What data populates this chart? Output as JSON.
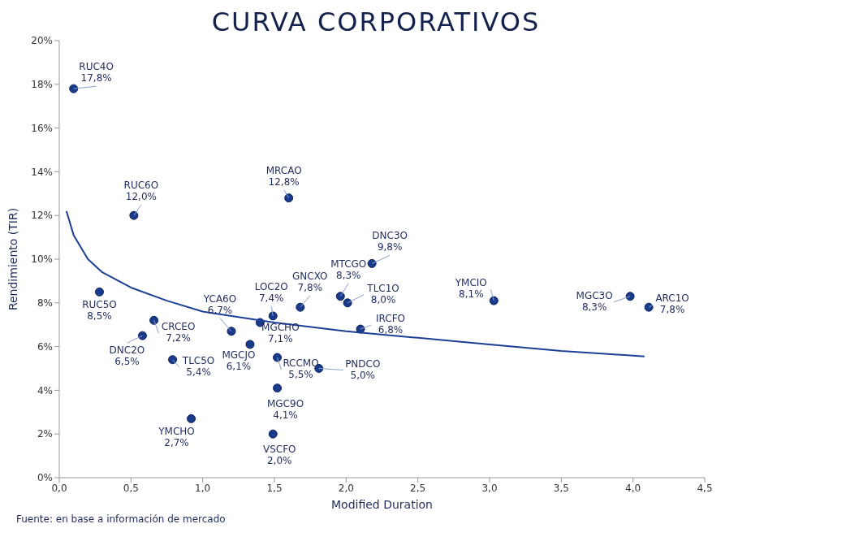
{
  "chart_data": {
    "type": "scatter",
    "title": "CURVA CORPORATIVOS",
    "xlabel": "Modified Duration",
    "ylabel": "Rendimiento (TIR)",
    "xlim": [
      0,
      4.5
    ],
    "xticks": [
      {
        "value": 0,
        "label": "0,0"
      },
      {
        "value": 0.5,
        "label": "0,5"
      },
      {
        "value": 1,
        "label": "1,0"
      },
      {
        "value": 1.5,
        "label": "1,5"
      },
      {
        "value": 2,
        "label": "2,0"
      },
      {
        "value": 2.5,
        "label": "2,5"
      },
      {
        "value": 3,
        "label": "3,0"
      },
      {
        "value": 3.5,
        "label": "3,5"
      },
      {
        "value": 4,
        "label": "4,0"
      },
      {
        "value": 4.5,
        "label": "4,5"
      }
    ],
    "ylim": [
      0,
      20
    ],
    "yticks": [
      {
        "value": 0,
        "label": "0%"
      },
      {
        "value": 2,
        "label": "2%"
      },
      {
        "value": 4,
        "label": "4%"
      },
      {
        "value": 6,
        "label": "6%"
      },
      {
        "value": 8,
        "label": "8%"
      },
      {
        "value": 10,
        "label": "10%"
      },
      {
        "value": 12,
        "label": "12%"
      },
      {
        "value": 14,
        "label": "14%"
      },
      {
        "value": 16,
        "label": "16%"
      },
      {
        "value": 18,
        "label": "18%"
      },
      {
        "value": 20,
        "label": "20%"
      }
    ],
    "grid": false,
    "legend": false,
    "series": [
      {
        "type": "scatter",
        "color": "#1a3a8a",
        "marker": "circle",
        "x": [
          0.1,
          0.52,
          1.6,
          2.18,
          1.96,
          2.01,
          3.03,
          3.98,
          4.11,
          0.28,
          0.66,
          0.58,
          0.79,
          1.2,
          1.49,
          1.68,
          1.4,
          1.33,
          1.52,
          1.81,
          2.1,
          1.52,
          0.92,
          1.49
        ],
        "values": [
          17.8,
          12.0,
          12.8,
          9.8,
          8.3,
          8.0,
          8.1,
          8.3,
          7.8,
          8.5,
          7.2,
          6.5,
          5.4,
          6.7,
          7.4,
          7.8,
          7.1,
          6.1,
          5.5,
          5.0,
          6.8,
          4.1,
          2.7,
          2.0
        ],
        "value_labels": [
          "17,8%",
          "12,0%",
          "12,8%",
          "9,8%",
          "8,3%",
          "8,0%",
          "8,1%",
          "8,3%",
          "7,8%",
          "8,5%",
          "7,2%",
          "6,5%",
          "5,4%",
          "6,7%",
          "7,4%",
          "7,8%",
          "7,1%",
          "6,1%",
          "5,5%",
          "5,0%",
          "6,8%",
          "4,1%",
          "2,7%",
          "2,0%"
        ]
      },
      {
        "type": "line",
        "color": "#1c3f94",
        "marker": "none",
        "line_style": "solid",
        "x": [
          0.05,
          0.1,
          0.2,
          0.3,
          0.5,
          0.75,
          1,
          1.5,
          2,
          2.5,
          3,
          3.5,
          4.08
        ],
        "values": [
          12.2,
          11.1,
          10.0,
          9.4,
          8.7,
          8.1,
          7.6,
          7.1,
          6.7,
          6.4,
          6.1,
          5.8,
          5.55
        ]
      }
    ],
    "annotations": [
      {
        "text": "RUC4O",
        "x": 0.1,
        "y": 17.8
      },
      {
        "text": "RUC6O",
        "x": 0.52,
        "y": 12.0
      },
      {
        "text": "MRCAO",
        "x": 1.6,
        "y": 12.8
      },
      {
        "text": "DNC3O",
        "x": 2.18,
        "y": 9.8
      },
      {
        "text": "MTCGO",
        "x": 1.96,
        "y": 8.3
      },
      {
        "text": "TLC1O",
        "x": 2.01,
        "y": 8.0
      },
      {
        "text": "YMCIO",
        "x": 3.03,
        "y": 8.1
      },
      {
        "text": "MGC3O",
        "x": 3.98,
        "y": 8.3
      },
      {
        "text": "ARC1O",
        "x": 4.11,
        "y": 7.8
      },
      {
        "text": "RUC5O",
        "x": 0.28,
        "y": 8.5
      },
      {
        "text": "CRCEO",
        "x": 0.66,
        "y": 7.2
      },
      {
        "text": "DNC2O",
        "x": 0.58,
        "y": 6.5
      },
      {
        "text": "TLC5O",
        "x": 0.79,
        "y": 5.4
      },
      {
        "text": "YCA6O",
        "x": 1.2,
        "y": 6.7
      },
      {
        "text": "LOC2O",
        "x": 1.49,
        "y": 7.4
      },
      {
        "text": "GNCXO",
        "x": 1.68,
        "y": 7.8
      },
      {
        "text": "MGCHO",
        "x": 1.4,
        "y": 7.1
      },
      {
        "text": "MGCJO",
        "x": 1.33,
        "y": 6.1
      },
      {
        "text": "RCCMO",
        "x": 1.52,
        "y": 5.5
      },
      {
        "text": "PNDCO",
        "x": 1.81,
        "y": 5.0
      },
      {
        "text": "IRCFO",
        "x": 2.1,
        "y": 6.8
      },
      {
        "text": "MGC9O",
        "x": 1.52,
        "y": 4.1
      },
      {
        "text": "YMCHO",
        "x": 0.92,
        "y": 2.7
      },
      {
        "text": "VSCFO",
        "x": 1.49,
        "y": 2.0
      },
      "Fuente: en base a información de mercado"
    ]
  }
}
